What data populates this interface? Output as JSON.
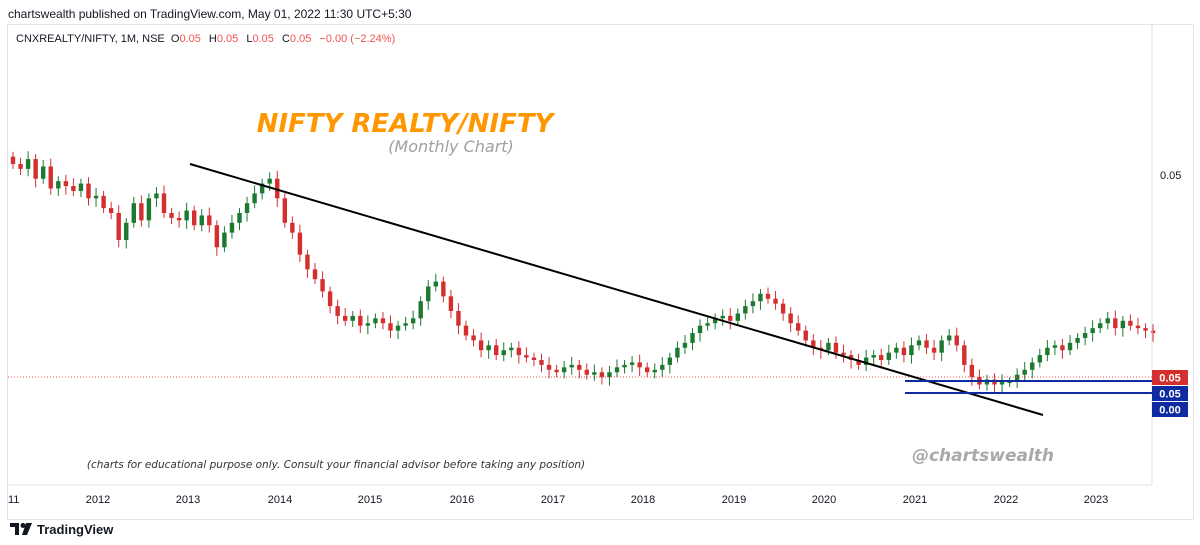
{
  "header": {
    "published": "chartswealth published on TradingView.com, May 01, 2022 11:30 UTC+5:30"
  },
  "symbol_line": {
    "symbol": "CNXREALTY/NIFTY, 1M, NSE",
    "o_label": "O",
    "o_value": "0.05",
    "h_label": "H",
    "h_value": "0.05",
    "l_label": "L",
    "l_value": "0.05",
    "c_label": "C",
    "c_value": "0.05",
    "change": "−0.00 (−2.24%)"
  },
  "annotations": {
    "title": "NIFTY REALTY/NIFTY",
    "subtitle": "(Monthly Chart)",
    "disclaimer": "(charts for educational purpose only. Consult your financial advisor before taking any position)",
    "handle": "@chartswealth"
  },
  "price_axis": {
    "tick": "0.05",
    "badges": [
      {
        "text": "0.05",
        "color": "#d32f2f"
      },
      {
        "text": "0.05",
        "color": "#0d2aa0"
      },
      {
        "text": "0.00",
        "color": "#0d2aa0"
      }
    ]
  },
  "footer": {
    "brand": "TradingView"
  },
  "colors": {
    "up": "#1b7a2f",
    "down": "#d32f2f",
    "title": "#ff9800",
    "trendline": "#000000",
    "box": "#0d2aa0"
  },
  "chart_data": {
    "type": "candlestick",
    "timeframe": "1M",
    "x_ticks": [
      "11",
      "2012",
      "2013",
      "2014",
      "2015",
      "2016",
      "2017",
      "2018",
      "2019",
      "2020",
      "2021",
      "2022",
      "2023"
    ],
    "y_label": "0.05",
    "last_close": 0.05,
    "candle_closes_relative": [
      0.8,
      0.78,
      0.82,
      0.74,
      0.79,
      0.7,
      0.73,
      0.71,
      0.69,
      0.72,
      0.66,
      0.67,
      0.62,
      0.6,
      0.49,
      0.56,
      0.64,
      0.57,
      0.66,
      0.68,
      0.6,
      0.58,
      0.57,
      0.61,
      0.55,
      0.59,
      0.55,
      0.46,
      0.52,
      0.56,
      0.6,
      0.64,
      0.68,
      0.72,
      0.74,
      0.66,
      0.56,
      0.52,
      0.43,
      0.37,
      0.33,
      0.28,
      0.22,
      0.18,
      0.16,
      0.18,
      0.14,
      0.15,
      0.17,
      0.15,
      0.12,
      0.14,
      0.15,
      0.17,
      0.24,
      0.3,
      0.32,
      0.26,
      0.2,
      0.14,
      0.1,
      0.08,
      0.04,
      0.06,
      0.02,
      0.04,
      0.05,
      0.02,
      0.01,
      0.0,
      -0.02,
      -0.04,
      -0.05,
      -0.03,
      -0.02,
      -0.04,
      -0.06,
      -0.05,
      -0.07,
      -0.05,
      -0.03,
      -0.02,
      -0.01,
      -0.03,
      -0.05,
      -0.04,
      -0.02,
      0.01,
      0.05,
      0.07,
      0.11,
      0.14,
      0.15,
      0.17,
      0.18,
      0.16,
      0.19,
      0.22,
      0.24,
      0.27,
      0.25,
      0.23,
      0.19,
      0.15,
      0.12,
      0.08,
      0.05,
      0.04,
      0.07,
      0.03,
      0.02,
      0.0,
      -0.02,
      0.01,
      0.02,
      0.0,
      0.03,
      0.05,
      0.02,
      0.06,
      0.08,
      0.05,
      0.03,
      0.08,
      0.1,
      0.06,
      -0.02,
      -0.07,
      -0.1,
      -0.08,
      -0.1,
      -0.09,
      -0.09,
      -0.06,
      -0.04,
      -0.01,
      0.02,
      0.05,
      0.06,
      0.04,
      0.07,
      0.09,
      0.11,
      0.13,
      0.15,
      0.17,
      0.13,
      0.16,
      0.14,
      0.13,
      0.12,
      0.11
    ]
  }
}
